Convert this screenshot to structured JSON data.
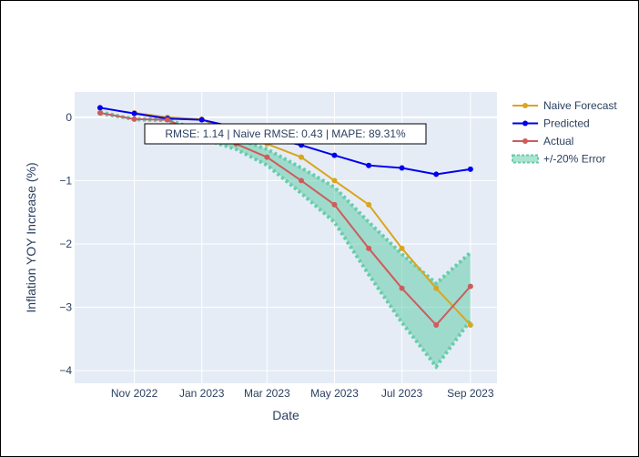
{
  "chart_data": {
    "type": "line",
    "xlabel": "Date",
    "ylabel": "Inflation YOY Increase (%)",
    "x_ticks": [
      "Nov 2022",
      "Jan 2023",
      "Mar 2023",
      "May 2023",
      "Jul 2023",
      "Sep 2023"
    ],
    "y_ticks": [
      "0",
      "−1",
      "−2",
      "−3",
      "−4"
    ],
    "y_tick_values": [
      0,
      -1,
      -2,
      -3,
      -4
    ],
    "xlim": [
      "2022-09-08",
      "2023-09-25"
    ],
    "ylim": [
      -4.2,
      0.4
    ],
    "x": [
      "2022-10-01",
      "2022-11-01",
      "2022-12-01",
      "2023-01-01",
      "2023-02-01",
      "2023-03-01",
      "2023-04-01",
      "2023-05-01",
      "2023-06-01",
      "2023-07-01",
      "2023-08-01",
      "2023-09-01"
    ],
    "series": [
      {
        "name": "Naive Forecast",
        "color": "#DAA520",
        "values": [
          null,
          0.07,
          0.0,
          -0.03,
          -0.28,
          -0.42,
          -0.63,
          -1.0,
          -1.38,
          -2.07,
          -2.7,
          -3.28
        ]
      },
      {
        "name": "Predicted",
        "color": "#0000EE",
        "values": [
          0.15,
          0.06,
          -0.02,
          -0.04,
          -0.16,
          -0.32,
          -0.44,
          -0.6,
          -0.76,
          -0.8,
          -0.9,
          -0.82
        ]
      },
      {
        "name": "Actual",
        "color": "#CD5C5C",
        "values": [
          0.07,
          -0.03,
          -0.04,
          -0.28,
          -0.42,
          -0.63,
          -1.0,
          -1.38,
          -2.07,
          -2.7,
          -3.28,
          -2.67
        ]
      }
    ],
    "error_band": {
      "name": "+/-20% Error",
      "color": "#66CDAA",
      "fraction": 0.2,
      "base_series": "Actual"
    },
    "annotation": "RMSE: 1.14 | Naive RMSE: 0.43 | MAPE: 89.31%",
    "legend_position": "top-right",
    "grid": true,
    "background": "#E5ECF6"
  }
}
